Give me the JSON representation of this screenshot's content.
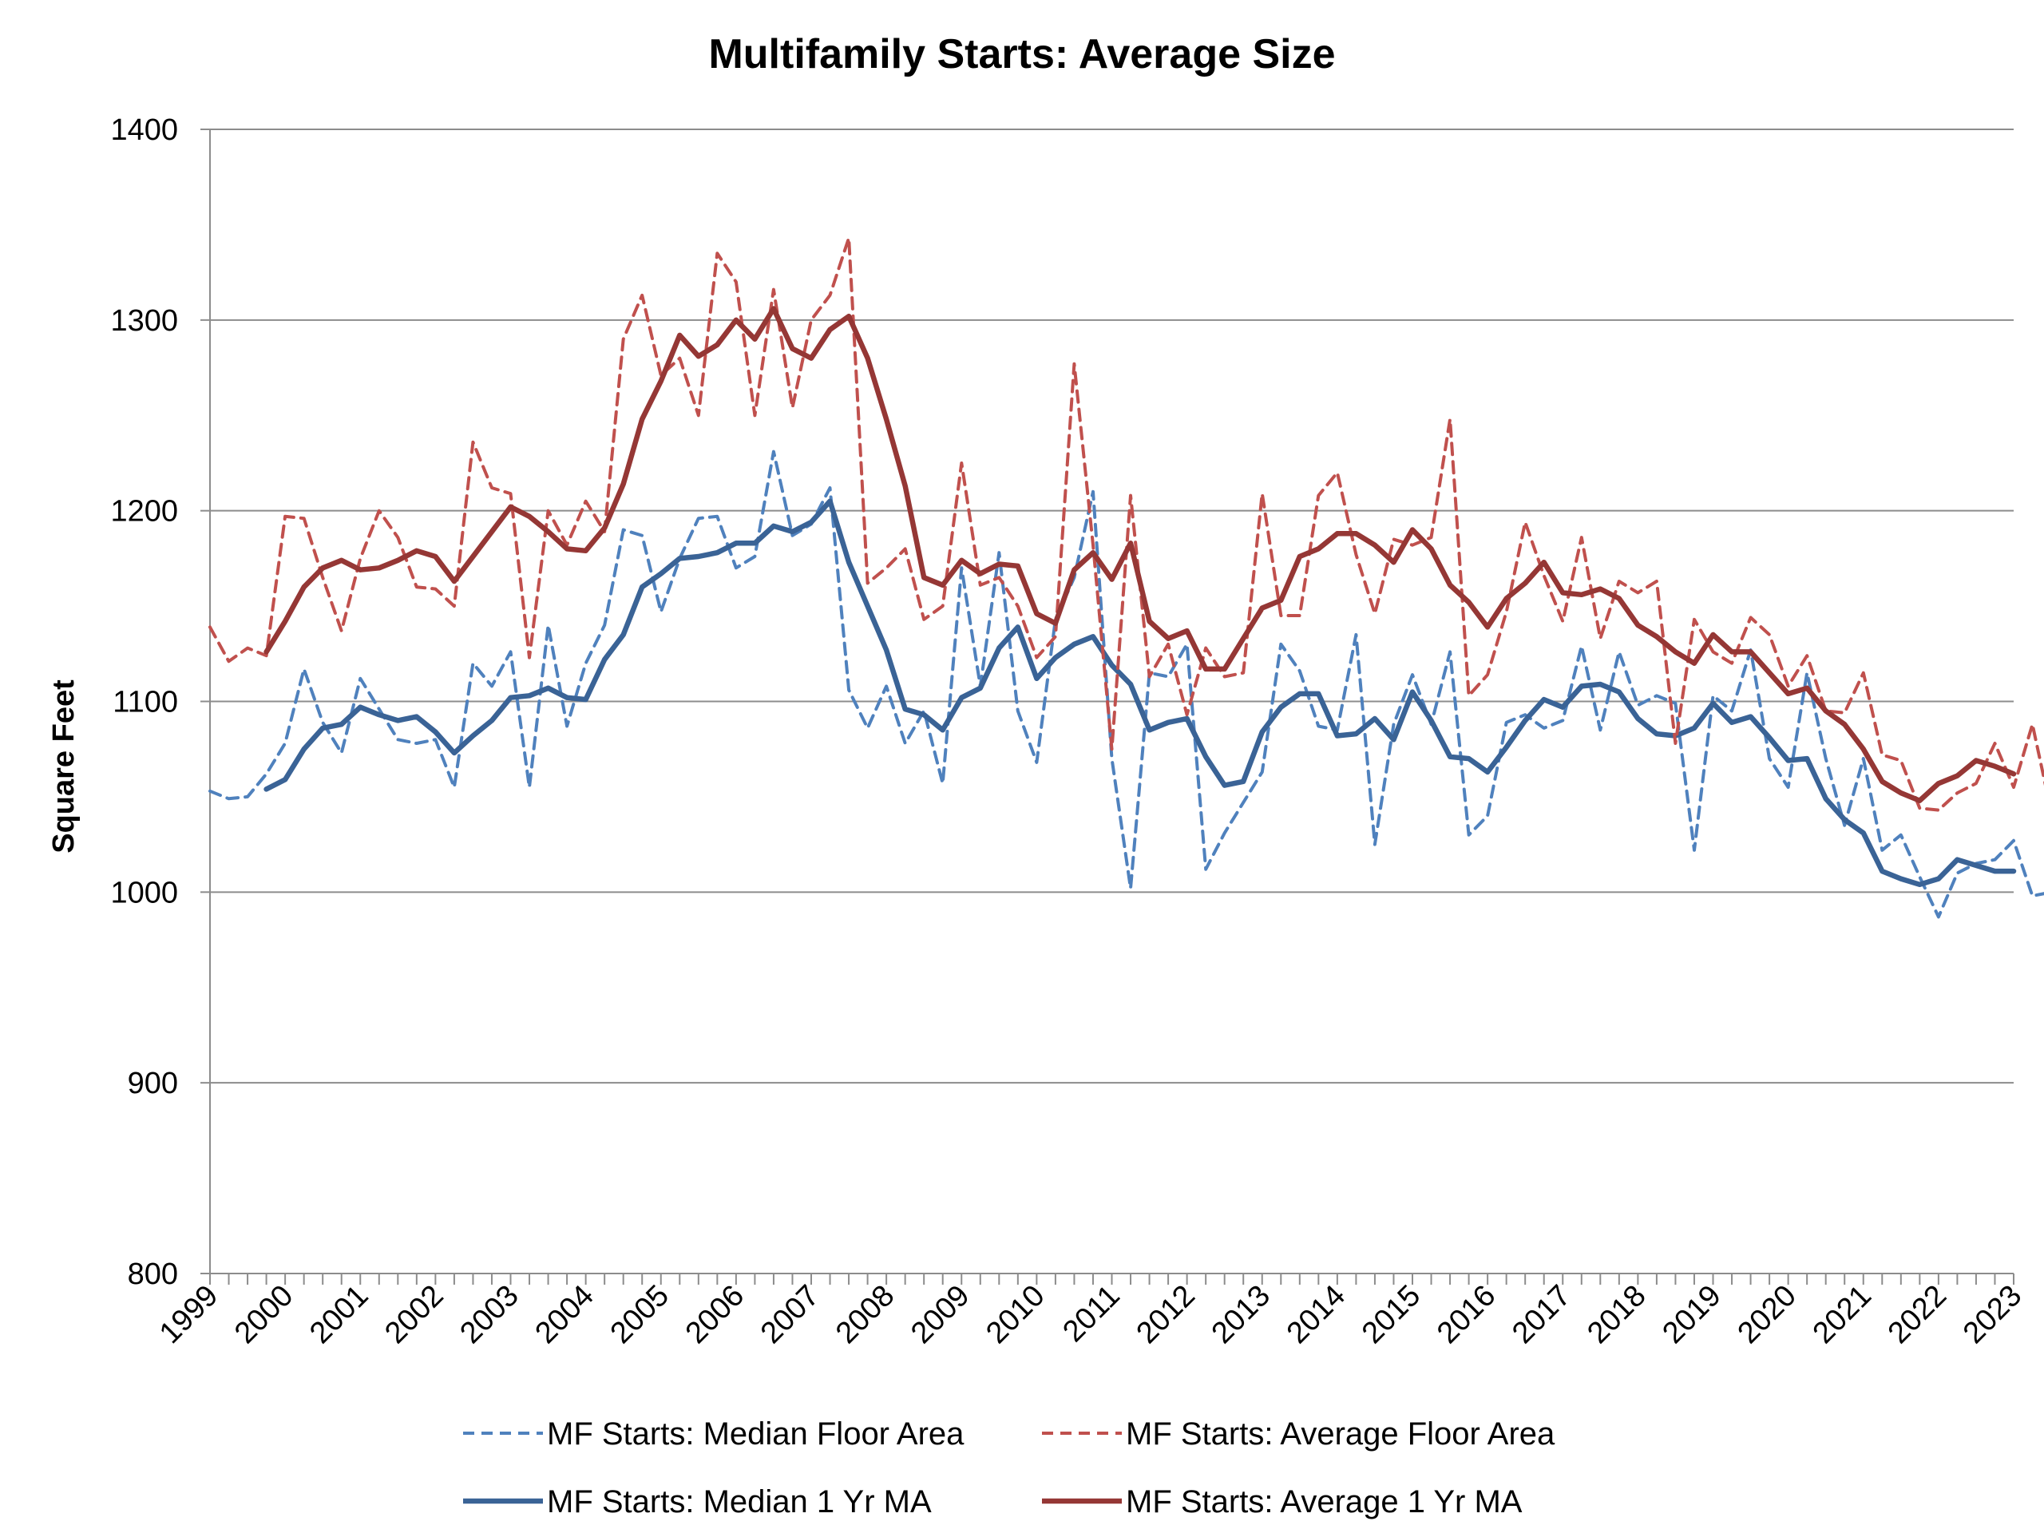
{
  "chart_data": {
    "type": "line",
    "title": "Multifamily Starts: Average Size",
    "xlabel": "",
    "ylabel": "Square Feet",
    "ylim": [
      800,
      1400
    ],
    "yticks": [
      800,
      900,
      1000,
      1100,
      1200,
      1300,
      1400
    ],
    "xlim": [
      1999,
      2023
    ],
    "xticks": [
      "1999",
      "2000",
      "2001",
      "2002",
      "2003",
      "2004",
      "2005",
      "2006",
      "2007",
      "2008",
      "2009",
      "2010",
      "2011",
      "2012",
      "2013",
      "2014",
      "2015",
      "2016",
      "2017",
      "2018",
      "2019",
      "2020",
      "2021",
      "2022",
      "2023"
    ],
    "grid": "horizontal",
    "legend_position": "bottom",
    "series": [
      {
        "name": "MF Starts: Median Floor Area",
        "style": "dashed",
        "color": "#4f81bd",
        "x_start": 1999.0,
        "x_step": 0.25,
        "values": [
          1053,
          1049,
          1050,
          1062,
          1078,
          1117,
          1089,
          1073,
          1112,
          1096,
          1080,
          1078,
          1080,
          1055,
          1120,
          1108,
          1126,
          1055,
          1140,
          1087,
          1120,
          1140,
          1190,
          1187,
          1147,
          1175,
          1196,
          1197,
          1170,
          1176,
          1231,
          1187,
          1193,
          1212,
          1106,
          1086,
          1108,
          1078,
          1095,
          1057,
          1170,
          1108,
          1178,
          1095,
          1068,
          1143,
          1165,
          1210,
          1070,
          1002,
          1115,
          1113,
          1130,
          1012,
          1031,
          1047,
          1063,
          1130,
          1116,
          1087,
          1085,
          1135,
          1025,
          1088,
          1114,
          1088,
          1126,
          1030,
          1040,
          1089,
          1093,
          1086,
          1090,
          1129,
          1085,
          1126,
          1098,
          1103,
          1099,
          1022,
          1103,
          1095,
          1127,
          1070,
          1055,
          1115,
          1070,
          1035,
          1070,
          1022,
          1030,
          1008,
          987,
          1010,
          1015,
          1017,
          1027,
          998,
          1000,
          1019
        ]
      },
      {
        "name": "MF Starts: Average Floor Area",
        "style": "dashed",
        "color": "#c0504d",
        "x_start": 1999.0,
        "x_step": 0.25,
        "values": [
          1139,
          1121,
          1128,
          1124,
          1197,
          1196,
          1165,
          1137,
          1175,
          1200,
          1186,
          1160,
          1159,
          1150,
          1236,
          1212,
          1209,
          1123,
          1200,
          1182,
          1205,
          1189,
          1290,
          1313,
          1271,
          1280,
          1250,
          1335,
          1320,
          1250,
          1316,
          1254,
          1300,
          1313,
          1343,
          1162,
          1170,
          1180,
          1143,
          1150,
          1225,
          1161,
          1165,
          1150,
          1123,
          1134,
          1277,
          1182,
          1075,
          1208,
          1113,
          1130,
          1093,
          1128,
          1113,
          1115,
          1209,
          1145,
          1145,
          1208,
          1220,
          1177,
          1146,
          1185,
          1182,
          1186,
          1248,
          1103,
          1114,
          1147,
          1194,
          1166,
          1142,
          1186,
          1133,
          1163,
          1157,
          1163,
          1078,
          1143,
          1126,
          1120,
          1144,
          1135,
          1108,
          1124,
          1095,
          1094,
          1115,
          1072,
          1069,
          1044,
          1043,
          1052,
          1057,
          1078,
          1055,
          1088,
          1042,
          1066
        ]
      },
      {
        "name": "MF Starts: Median 1 Yr MA",
        "style": "solid",
        "color": "#3a6396",
        "x_start": 1999.75,
        "x_step": 0.25,
        "values": [
          1054,
          1059,
          1075,
          1086,
          1088,
          1097,
          1093,
          1090,
          1092,
          1084,
          1073,
          1082,
          1090,
          1102,
          1103,
          1107,
          1102,
          1101,
          1122,
          1135,
          1160,
          1167,
          1175,
          1176,
          1178,
          1183,
          1183,
          1192,
          1189,
          1194,
          1205,
          1173,
          1150,
          1127,
          1096,
          1093,
          1085,
          1102,
          1107,
          1128,
          1139,
          1112,
          1123,
          1130,
          1134,
          1119,
          1109,
          1085,
          1089,
          1091,
          1071,
          1056,
          1058,
          1084,
          1097,
          1104,
          1104,
          1082,
          1083,
          1091,
          1080,
          1105,
          1090,
          1071,
          1070,
          1063,
          1076,
          1090,
          1101,
          1097,
          1108,
          1109,
          1105,
          1091,
          1083,
          1082,
          1086,
          1099,
          1089,
          1092,
          1081,
          1069,
          1070,
          1049,
          1038,
          1031,
          1011,
          1007,
          1004,
          1007,
          1017,
          1014,
          1011,
          1011
        ]
      },
      {
        "name": "MF Starts: Average 1 Yr MA",
        "style": "solid",
        "color": "#953735",
        "x_start": 1999.75,
        "x_step": 0.25,
        "values": [
          1126,
          1142,
          1160,
          1170,
          1174,
          1169,
          1170,
          1174,
          1179,
          1176,
          1163,
          1176,
          1189,
          1202,
          1197,
          1189,
          1180,
          1179,
          1191,
          1214,
          1248,
          1268,
          1292,
          1281,
          1287,
          1300,
          1290,
          1306,
          1285,
          1280,
          1295,
          1302,
          1280,
          1248,
          1213,
          1165,
          1161,
          1174,
          1167,
          1172,
          1171,
          1146,
          1141,
          1169,
          1178,
          1164,
          1183,
          1142,
          1133,
          1137,
          1117,
          1117,
          1133,
          1149,
          1153,
          1176,
          1180,
          1188,
          1188,
          1182,
          1173,
          1190,
          1180,
          1161,
          1152,
          1139,
          1154,
          1162,
          1173,
          1157,
          1156,
          1159,
          1154,
          1140,
          1134,
          1126,
          1120,
          1135,
          1126,
          1126,
          1115,
          1104,
          1107,
          1095,
          1088,
          1075,
          1058,
          1052,
          1048,
          1057,
          1061,
          1069,
          1066,
          1062
        ]
      }
    ]
  }
}
